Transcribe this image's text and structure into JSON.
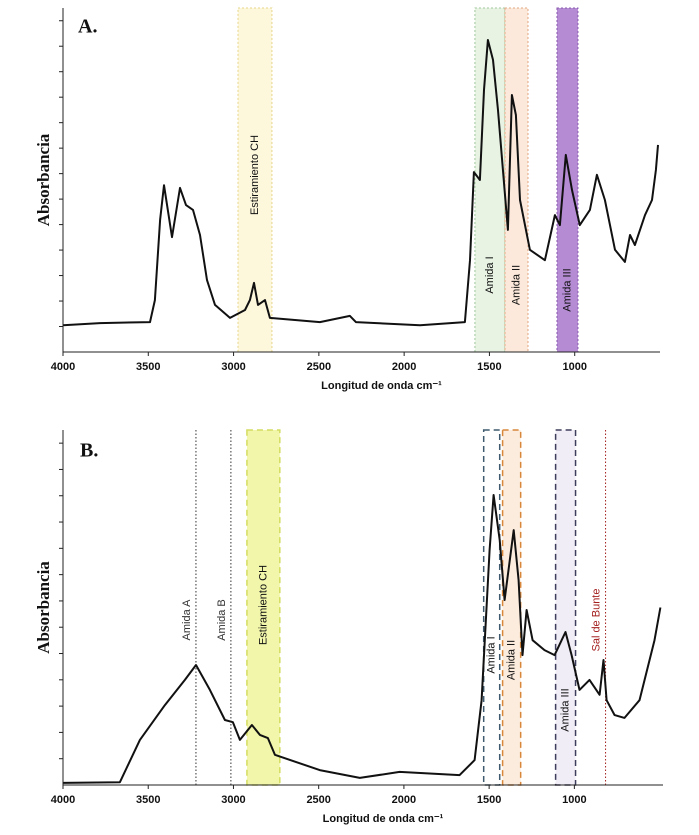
{
  "chart_data": [
    {
      "type": "line",
      "title": "A.",
      "x_label": "Longitud de onda cm⁻¹",
      "y_label": "Absorbancia",
      "xlim": [
        4000,
        500
      ],
      "ylim": [
        0,
        100
      ],
      "xticks": [
        4000,
        3500,
        3000,
        2500,
        2000,
        1500,
        1000
      ],
      "color": "#111111",
      "x": [
        4000,
        3783,
        3490,
        3461,
        3431,
        3408,
        3361,
        3314,
        3279,
        3238,
        3197,
        3156,
        3109,
        3021,
        2933,
        2904,
        2880,
        2857,
        2816,
        2787,
        2494,
        2318,
        2283,
        1907,
        1644,
        1614,
        1591,
        1556,
        1532,
        1509,
        1479,
        1450,
        1409,
        1392,
        1368,
        1345,
        1321,
        1263,
        1175,
        1116,
        1087,
        1052,
        1016,
        970,
        911,
        870,
        823,
        764,
        706,
        676,
        647,
        588,
        547,
        524,
        512
      ],
      "values": [
        7.8,
        8.4,
        8.7,
        15.1,
        38.4,
        48.5,
        33.4,
        47.7,
        42.7,
        41.3,
        34,
        20.9,
        13.7,
        9.9,
        12.2,
        15.1,
        20.1,
        13.7,
        15.1,
        9.9,
        8.7,
        10.5,
        8.7,
        7.8,
        8.7,
        26.7,
        52.3,
        50,
        76.2,
        90.7,
        84.9,
        70.3,
        45.6,
        35.5,
        74.7,
        68.9,
        44.2,
        29.7,
        26.7,
        39.8,
        36.9,
        57.3,
        47.1,
        36.9,
        41.3,
        51.5,
        44.2,
        29.7,
        26.2,
        34,
        31.1,
        39.8,
        44.2,
        52.9,
        60.2
      ],
      "bands": [
        {
          "label": "Estiramiento CH",
          "x": [
            2974,
            2775
          ],
          "fill": "#fdf6d6",
          "stroke": "#e6d48a"
        },
        {
          "label": "Amida I",
          "x": [
            1585,
            1409
          ],
          "fill": "#e4f1df",
          "stroke": "#9fc59a"
        },
        {
          "label": "Amida II",
          "x": [
            1409,
            1274
          ],
          "fill": "#fbe5d6",
          "stroke": "#e0a77e"
        },
        {
          "label": "Amida III",
          "x": [
            1104,
            981
          ],
          "fill": "#a878cc",
          "stroke": "#8a58b0"
        }
      ]
    },
    {
      "type": "line",
      "title": "B.",
      "x_label": "Longitud de onda cm⁻¹",
      "y_label": "Absorbancia",
      "xlim": [
        4000,
        480
      ],
      "ylim": [
        0,
        100
      ],
      "xticks": [
        4000,
        3500,
        3000,
        2500,
        2000,
        1500,
        1000
      ],
      "color": "#111111",
      "x": [
        4000,
        3666,
        3549,
        3402,
        3285,
        3220,
        3138,
        3050,
        3003,
        2962,
        2892,
        2845,
        2798,
        2757,
        2494,
        2259,
        2025,
        1673,
        1585,
        1544,
        1497,
        1474,
        1438,
        1409,
        1356,
        1327,
        1304,
        1280,
        1245,
        1175,
        1116,
        1052,
        1016,
        970,
        911,
        852,
        829,
        811,
        764,
        706,
        618,
        530,
        495
      ],
      "values": [
        0.6,
        0.8,
        12.7,
        22.5,
        29.6,
        33.8,
        26.8,
        18.3,
        17.7,
        12.7,
        16.9,
        14.1,
        13.2,
        8.5,
        4.2,
        2,
        3.7,
        2.8,
        7,
        23.9,
        66.2,
        81.7,
        69,
        52.1,
        71.8,
        57.7,
        36.6,
        49.3,
        40.8,
        38,
        36.6,
        43.1,
        36.6,
        26.8,
        29.6,
        25.4,
        35.2,
        23.9,
        19.7,
        18.9,
        23.9,
        40.8,
        50
      ],
      "bands": [
        {
          "label": "Estiramiento CH",
          "x": [
            2921,
            2728
          ],
          "fill": "#eef59c",
          "stroke": "#d4dc60"
        },
        {
          "label": "Amida I",
          "x": [
            1532,
            1438
          ],
          "fill": "none",
          "stroke": "#3f5a6e"
        },
        {
          "label": "Amida II",
          "x": [
            1421,
            1315
          ],
          "fill": "#fbe9d8",
          "stroke": "#d8873a"
        },
        {
          "label": "Amida III",
          "x": [
            1110,
            993
          ],
          "fill": "#efeaf6",
          "stroke": "#3d3d5c"
        }
      ],
      "lines": [
        {
          "label": "Amida A",
          "x": 3220,
          "color": "#333333"
        },
        {
          "label": "Amida B",
          "x": 3015,
          "color": "#333333"
        },
        {
          "label": "Sal de Bunte",
          "x": 817,
          "color": "#a3201e"
        }
      ]
    }
  ]
}
